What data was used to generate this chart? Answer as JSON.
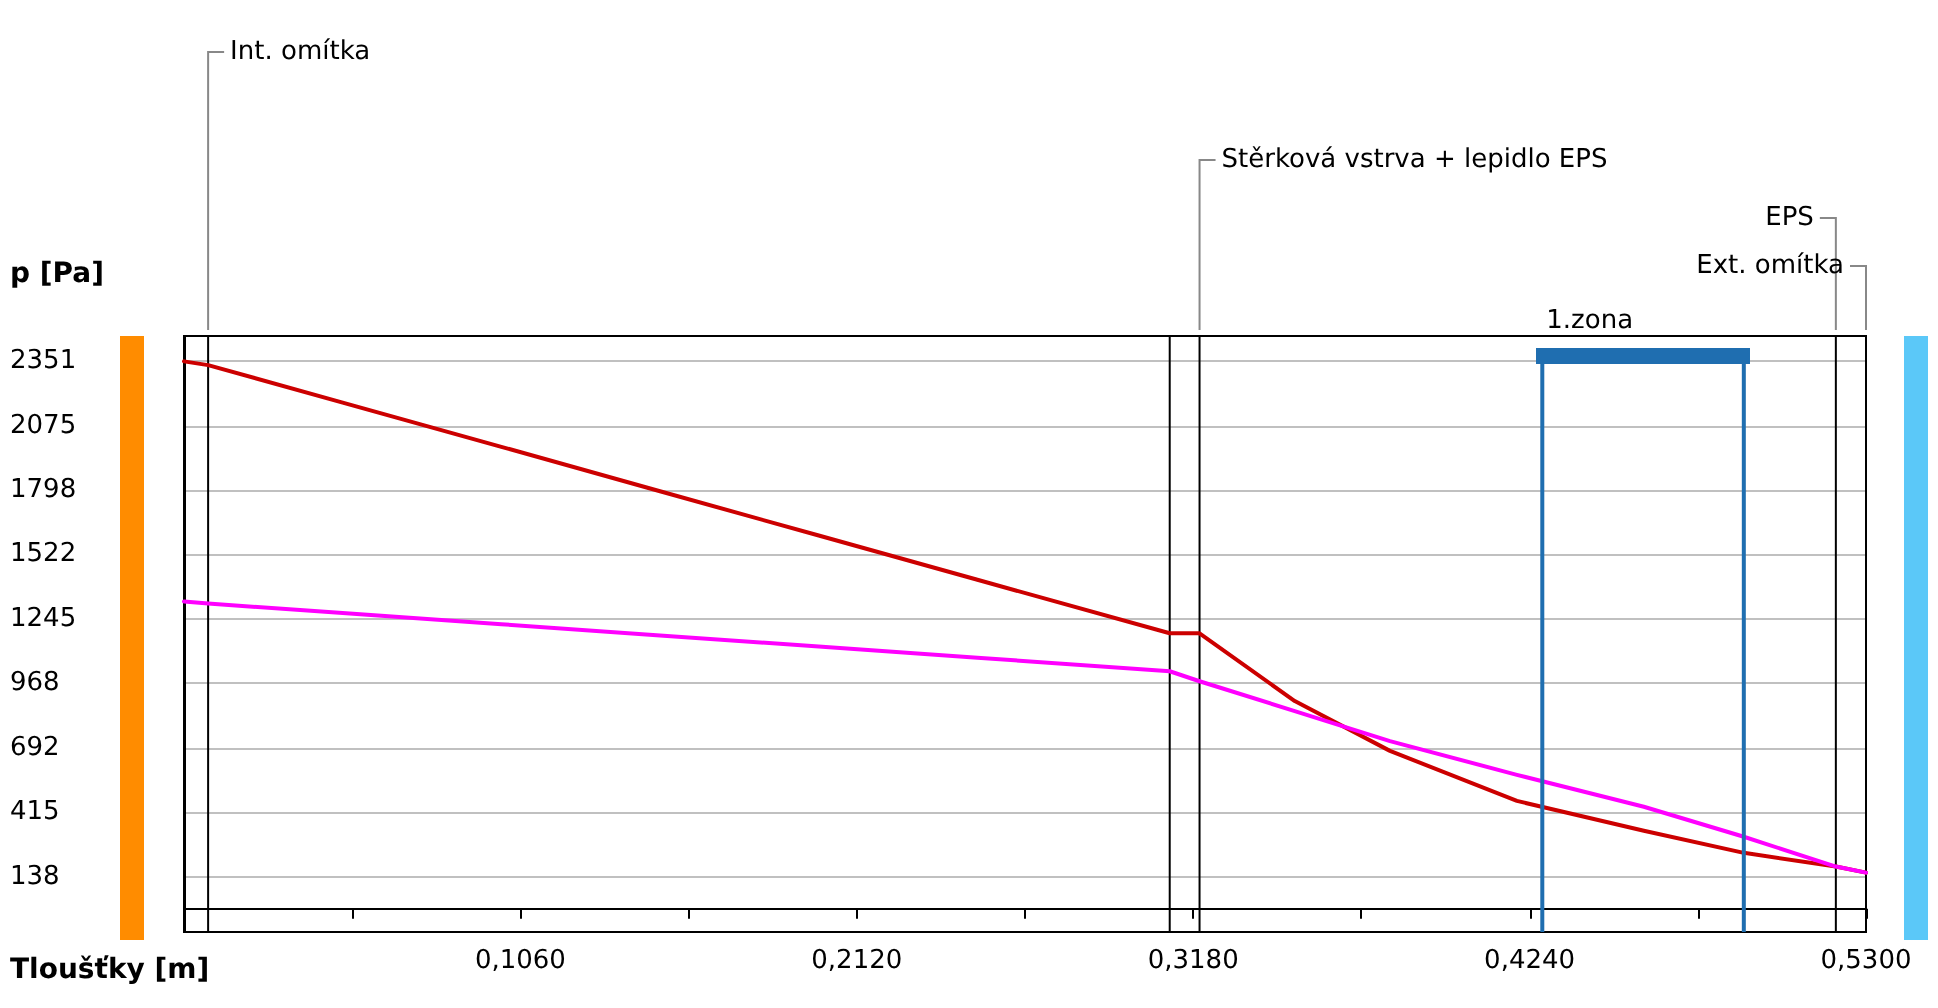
{
  "chart_data": {
    "type": "line",
    "xlabel": "Tloušťky [m]",
    "ylabel": "p [Pa]",
    "xlim": [
      0,
      0.53
    ],
    "ylim": [
      -100,
      2460
    ],
    "xticks": [
      {
        "value": 0.053,
        "label": null
      },
      {
        "value": 0.106,
        "label": "0,1060"
      },
      {
        "value": 0.159,
        "label": null
      },
      {
        "value": 0.212,
        "label": "0,2120"
      },
      {
        "value": 0.265,
        "label": null
      },
      {
        "value": 0.318,
        "label": "0,3180"
      },
      {
        "value": 0.371,
        "label": null
      },
      {
        "value": 0.424,
        "label": "0,4240"
      },
      {
        "value": 0.477,
        "label": null
      },
      {
        "value": 0.53,
        "label": "0,5300"
      }
    ],
    "yticks": [
      138,
      415,
      692,
      968,
      1245,
      1522,
      1798,
      2075,
      2351
    ],
    "grid": "y",
    "marker": "none",
    "line_style": "solid",
    "series": [
      {
        "color": "#cc0000",
        "x": [
          0,
          0.0076,
          0.05,
          0.1,
          0.15,
          0.2,
          0.25,
          0.3106,
          0.32,
          0.35,
          0.38,
          0.42,
          0.46,
          0.4915,
          0.5205,
          0.53
        ],
        "values": [
          2351,
          2335,
          2174,
          1984,
          1793,
          1603,
          1413,
          1183,
          1183,
          892,
          678,
          463,
          335,
          240,
          181,
          155
        ]
      },
      {
        "color": "#ff00ff",
        "x": [
          0,
          0.0076,
          0.05,
          0.1,
          0.15,
          0.2,
          0.25,
          0.3106,
          0.32,
          0.35,
          0.38,
          0.42,
          0.46,
          0.4915,
          0.5205,
          0.53
        ],
        "values": [
          1320,
          1311,
          1270,
          1222,
          1174,
          1126,
          1078,
          1020,
          977,
          849,
          720,
          575,
          438,
          309,
          181,
          155
        ]
      }
    ],
    "ref_lines": [
      {
        "axis": "x",
        "value": 0.0076,
        "color": "#000000",
        "label": "Int. omítka"
      },
      {
        "axis": "x",
        "value": 0.3106,
        "color": "#000000"
      },
      {
        "axis": "x",
        "value": 0.32,
        "color": "#000000",
        "label": "Stěrková vstrva + lepidlo EPS"
      },
      {
        "axis": "x",
        "value": 0.5205,
        "color": "#000000",
        "label": "EPS"
      },
      {
        "axis": "x",
        "value": 0.53,
        "color": "#000000",
        "label": "Ext. omítka"
      },
      {
        "axis": "x",
        "value": 0.428,
        "color": "#1f6eb0",
        "label": "1.zona"
      },
      {
        "axis": "x",
        "value": 0.4915,
        "color": "#1f6eb0"
      }
    ]
  }
}
